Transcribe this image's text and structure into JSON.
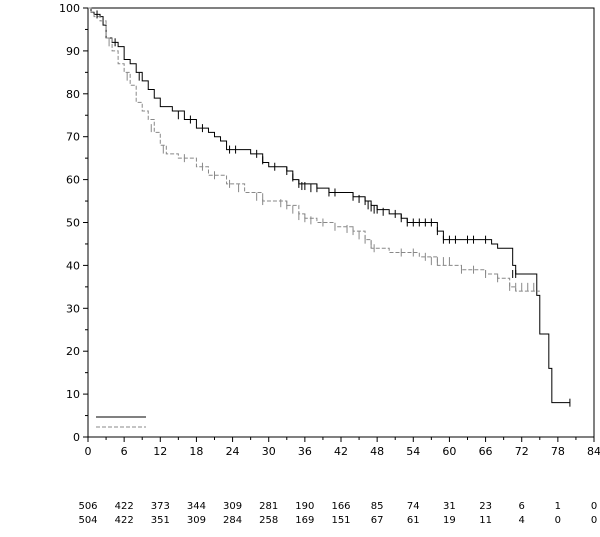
{
  "chart_data": {
    "type": "line",
    "title": "",
    "xlabel": "",
    "ylabel": "",
    "xlim": [
      0,
      84
    ],
    "ylim": [
      0,
      100
    ],
    "x_ticks": [
      0,
      6,
      12,
      18,
      24,
      30,
      36,
      42,
      48,
      54,
      60,
      66,
      72,
      78,
      84
    ],
    "y_ticks": [
      0,
      10,
      20,
      30,
      40,
      50,
      60,
      70,
      80,
      90,
      100
    ],
    "x_tick_labels": [
      "0",
      "6",
      "12",
      "18",
      "24",
      "30",
      "36",
      "42",
      "48",
      "54",
      "60",
      "66",
      "72",
      "78",
      "84"
    ],
    "y_tick_labels": [
      "0",
      "10",
      "20",
      "30",
      "40",
      "50",
      "60",
      "70",
      "80",
      "90",
      "100"
    ],
    "legend": {
      "placement": "bottom-left",
      "entries": [
        {
          "series": "solid",
          "label": ""
        },
        {
          "series": "dashed",
          "label": ""
        }
      ]
    },
    "series": [
      {
        "name": "solid",
        "style": "solid",
        "color": "#000000",
        "points": [
          [
            0,
            100
          ],
          [
            0.5,
            99
          ],
          [
            1,
            98.5
          ],
          [
            2,
            98
          ],
          [
            2.5,
            96
          ],
          [
            3,
            93
          ],
          [
            4,
            92
          ],
          [
            5,
            91
          ],
          [
            6,
            88
          ],
          [
            7,
            87
          ],
          [
            8,
            85
          ],
          [
            9,
            83
          ],
          [
            10,
            81
          ],
          [
            11,
            79
          ],
          [
            12,
            77
          ],
          [
            14,
            76
          ],
          [
            16,
            74
          ],
          [
            18,
            72
          ],
          [
            20,
            71
          ],
          [
            21,
            70
          ],
          [
            22,
            69
          ],
          [
            23,
            67
          ],
          [
            26,
            67
          ],
          [
            27,
            66
          ],
          [
            29,
            64
          ],
          [
            30,
            63
          ],
          [
            33,
            62
          ],
          [
            34,
            60
          ],
          [
            35,
            59
          ],
          [
            38,
            58
          ],
          [
            40,
            57
          ],
          [
            44,
            56
          ],
          [
            46,
            55
          ],
          [
            47,
            54
          ],
          [
            48,
            53
          ],
          [
            50,
            52
          ],
          [
            52,
            51
          ],
          [
            53,
            50
          ],
          [
            57,
            50
          ],
          [
            58,
            48
          ],
          [
            59,
            46
          ],
          [
            66,
            46
          ],
          [
            67,
            45
          ],
          [
            68,
            44
          ],
          [
            70,
            44
          ],
          [
            70.5,
            40
          ],
          [
            71,
            38
          ],
          [
            74,
            38
          ],
          [
            74.5,
            33
          ],
          [
            75,
            24
          ],
          [
            76,
            24
          ],
          [
            76.5,
            16
          ],
          [
            77,
            8
          ],
          [
            80,
            8
          ]
        ],
        "censored": [
          [
            1.5,
            98.5
          ],
          [
            4.5,
            92
          ],
          [
            8.5,
            84
          ],
          [
            15,
            75
          ],
          [
            17,
            74
          ],
          [
            19,
            72
          ],
          [
            23.5,
            67
          ],
          [
            24.5,
            67
          ],
          [
            28,
            66
          ],
          [
            29,
            64.5
          ],
          [
            31,
            63
          ],
          [
            33,
            62
          ],
          [
            34,
            60.5
          ],
          [
            35,
            59
          ],
          [
            35.5,
            58.5
          ],
          [
            36,
            58.5
          ],
          [
            37,
            58
          ],
          [
            38,
            58
          ],
          [
            40,
            57
          ],
          [
            41,
            57
          ],
          [
            44,
            56
          ],
          [
            45,
            55.5
          ],
          [
            46,
            55
          ],
          [
            46.5,
            54
          ],
          [
            47,
            53.5
          ],
          [
            47.5,
            53
          ],
          [
            48,
            53
          ],
          [
            49,
            52.5
          ],
          [
            51,
            52
          ],
          [
            52,
            51
          ],
          [
            53,
            50
          ],
          [
            54,
            50
          ],
          [
            55,
            50
          ],
          [
            56,
            50
          ],
          [
            57,
            50
          ],
          [
            58,
            48
          ],
          [
            59,
            46
          ],
          [
            60,
            46
          ],
          [
            61,
            46
          ],
          [
            63,
            46
          ],
          [
            64,
            46
          ],
          [
            66,
            46
          ],
          [
            70.5,
            38
          ],
          [
            71,
            38
          ],
          [
            80,
            8
          ]
        ]
      },
      {
        "name": "dashed",
        "style": "dashed",
        "color": "#888888",
        "points": [
          [
            0,
            100
          ],
          [
            0.5,
            99
          ],
          [
            1,
            98
          ],
          [
            2,
            97
          ],
          [
            3,
            93
          ],
          [
            4,
            90
          ],
          [
            5,
            87
          ],
          [
            6,
            85
          ],
          [
            7,
            82
          ],
          [
            8,
            78
          ],
          [
            9,
            76
          ],
          [
            10,
            74
          ],
          [
            11,
            71
          ],
          [
            12,
            68
          ],
          [
            13,
            66
          ],
          [
            15,
            65
          ],
          [
            18,
            63
          ],
          [
            20,
            61
          ],
          [
            23,
            59
          ],
          [
            26,
            57
          ],
          [
            29,
            55
          ],
          [
            33,
            54
          ],
          [
            35,
            52
          ],
          [
            36,
            51
          ],
          [
            38,
            50
          ],
          [
            41,
            49
          ],
          [
            44,
            48
          ],
          [
            46,
            46
          ],
          [
            47,
            44
          ],
          [
            50,
            43
          ],
          [
            55,
            42
          ],
          [
            58,
            40
          ],
          [
            62,
            39
          ],
          [
            66,
            38
          ],
          [
            68,
            37
          ],
          [
            70,
            35
          ],
          [
            71,
            34
          ],
          [
            75,
            34
          ]
        ],
        "censored": [
          [
            3.5,
            92
          ],
          [
            6.5,
            84
          ],
          [
            10.5,
            72
          ],
          [
            12.5,
            67
          ],
          [
            16,
            65
          ],
          [
            19,
            63
          ],
          [
            21,
            61
          ],
          [
            23.5,
            59
          ],
          [
            25,
            58
          ],
          [
            28,
            56
          ],
          [
            29,
            55
          ],
          [
            32,
            54.5
          ],
          [
            33,
            54
          ],
          [
            34,
            53
          ],
          [
            35,
            51.5
          ],
          [
            36,
            51
          ],
          [
            37,
            50.5
          ],
          [
            39,
            50
          ],
          [
            41,
            49
          ],
          [
            43,
            48.5
          ],
          [
            44,
            48
          ],
          [
            45,
            47
          ],
          [
            46,
            46
          ],
          [
            47,
            45
          ],
          [
            47.5,
            44
          ],
          [
            52,
            43
          ],
          [
            54,
            43
          ],
          [
            56,
            42
          ],
          [
            57,
            41
          ],
          [
            58,
            41
          ],
          [
            59,
            41
          ],
          [
            60,
            41
          ],
          [
            62,
            39
          ],
          [
            64,
            39
          ],
          [
            66,
            38
          ],
          [
            68,
            37
          ],
          [
            70,
            35
          ],
          [
            71,
            35
          ],
          [
            72,
            35
          ],
          [
            73,
            35
          ],
          [
            74,
            35
          ]
        ]
      }
    ],
    "number_at_risk": {
      "times": [
        0,
        6,
        12,
        18,
        24,
        30,
        36,
        42,
        48,
        54,
        60,
        66,
        72,
        78,
        84
      ],
      "rows": [
        {
          "series": "solid",
          "values": [
            "506",
            "422",
            "373",
            "344",
            "309",
            "281",
            "190",
            "166",
            "85",
            "74",
            "31",
            "23",
            "6",
            "1",
            "0"
          ]
        },
        {
          "series": "dashed",
          "values": [
            "504",
            "422",
            "351",
            "309",
            "284",
            "258",
            "169",
            "151",
            "67",
            "61",
            "19",
            "11",
            "4",
            "0",
            "0"
          ]
        }
      ]
    }
  }
}
